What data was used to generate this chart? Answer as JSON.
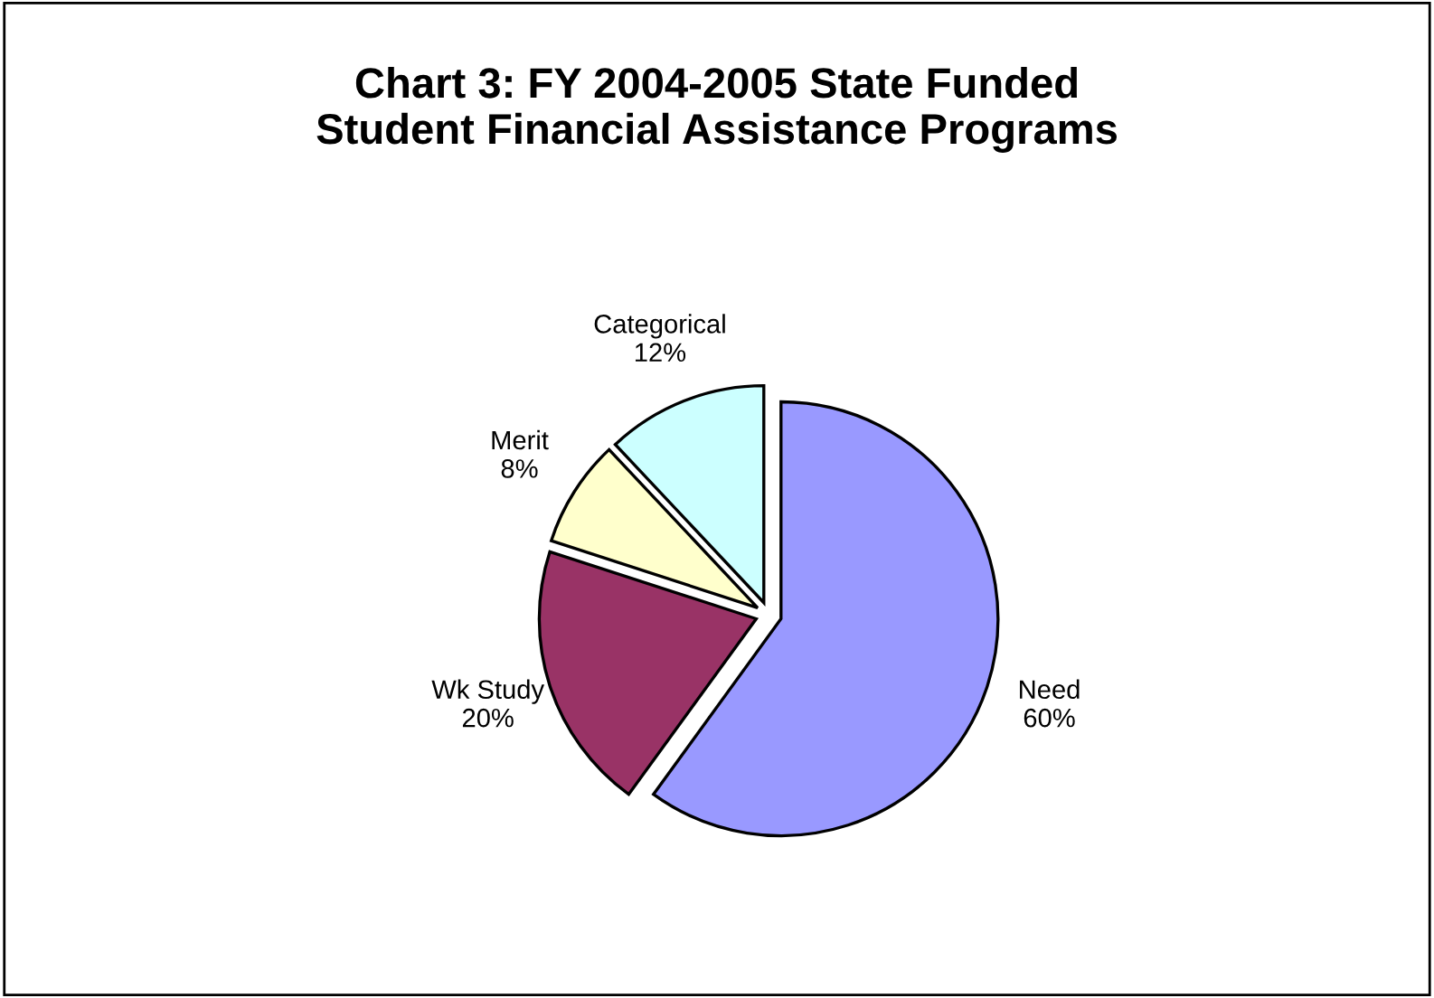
{
  "chart_data": {
    "type": "pie",
    "title": "Chart 3: FY 2004-2005 State Funded\nStudent Financial Assistance Programs",
    "categories": [
      "Need",
      "Wk Study",
      "Merit",
      "Categorical"
    ],
    "values": [
      60,
      20,
      8,
      12
    ],
    "value_labels": [
      "60%",
      "20%",
      "8%",
      "12%"
    ],
    "colors": [
      "#9999ff",
      "#993366",
      "#ffffcc",
      "#ccffff"
    ],
    "legend": false
  }
}
